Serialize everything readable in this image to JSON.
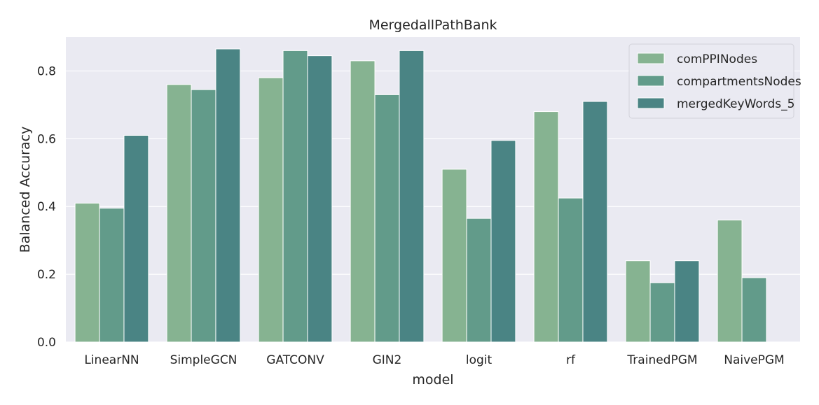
{
  "chart_data": {
    "type": "bar",
    "title": "MergedallPathBank",
    "xlabel": "model",
    "ylabel": "Balanced Accuracy",
    "categories": [
      "LinearNN",
      "SimpleGCN",
      "GATCONV",
      "GIN2",
      "logit",
      "rf",
      "TrainedPGM",
      "NaivePGM"
    ],
    "series": [
      {
        "name": "comPPINodes",
        "color": "#86b391",
        "values": [
          0.41,
          0.76,
          0.78,
          0.83,
          0.51,
          0.68,
          0.24,
          0.36
        ]
      },
      {
        "name": "compartmentsNodes",
        "color": "#629b8a",
        "values": [
          0.395,
          0.745,
          0.86,
          0.73,
          0.365,
          0.425,
          0.175,
          0.19
        ]
      },
      {
        "name": "mergedKeyWords_5",
        "color": "#4a8484",
        "values": [
          0.61,
          0.865,
          0.845,
          0.86,
          0.595,
          0.71,
          0.24,
          null
        ]
      }
    ],
    "ylim": [
      0,
      0.9
    ],
    "yticks": [
      "0.0",
      "0.2",
      "0.4",
      "0.6",
      "0.8"
    ],
    "grid": true,
    "legend_position": "top-right",
    "background_color": "#eaeaf2"
  }
}
